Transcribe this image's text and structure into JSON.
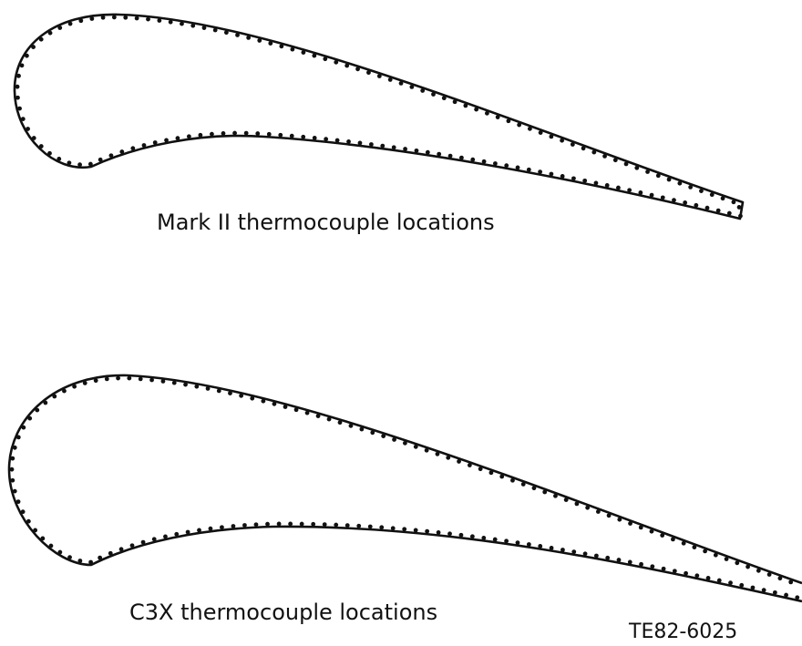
{
  "diagram": {
    "airfoils": [
      {
        "caption": "Mark II thermocouple locations"
      },
      {
        "caption": "C3X thermocouple locations"
      }
    ],
    "figure_id": "TE82-6025"
  }
}
